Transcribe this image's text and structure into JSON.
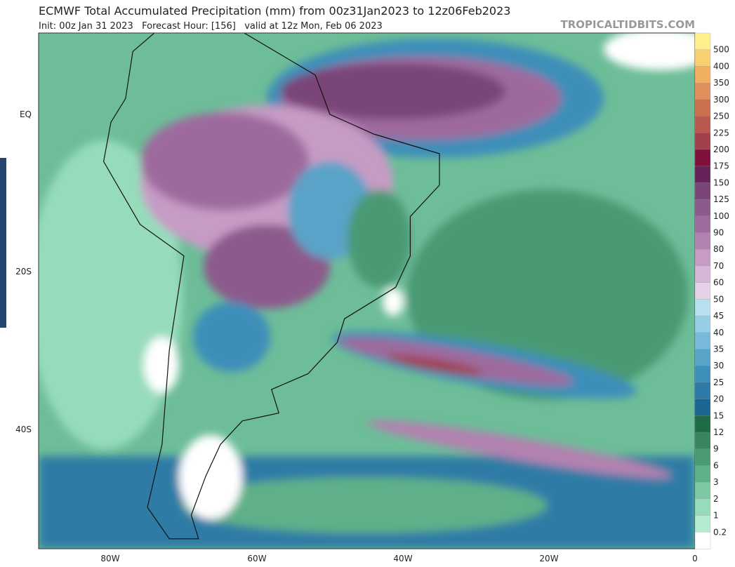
{
  "header": {
    "title": "ECMWF Total Accumulated Precipitation (mm) from 00z31Jan2023 to 12z06Feb2023",
    "subtitle": "Init: 00z Jan 31 2023   Forecast Hour: [156]   valid at 12z Mon, Feb 06 2023",
    "source": "TROPICALTIDBITS.COM"
  },
  "map": {
    "lat_labels": [
      "EQ",
      "20S",
      "40S"
    ],
    "lon_labels": [
      "80W",
      "60W",
      "40W",
      "20W",
      "0"
    ]
  },
  "colorbar": {
    "labels": [
      "500",
      "400",
      "350",
      "300",
      "250",
      "225",
      "200",
      "175",
      "150",
      "125",
      "100",
      "90",
      "80",
      "70",
      "60",
      "50",
      "45",
      "40",
      "35",
      "30",
      "25",
      "20",
      "15",
      "12",
      "9",
      "6",
      "3",
      "2",
      "1",
      "0.2"
    ],
    "colors": [
      "#fff08c",
      "#f8d070",
      "#f0b060",
      "#e0905c",
      "#c8704f",
      "#b85a50",
      "#a0404a",
      "#800f3c",
      "#65235a",
      "#7a4478",
      "#8c5a8c",
      "#9e6b9e",
      "#b282b0",
      "#c69bc4",
      "#d7b7d7",
      "#e6d2e6",
      "#b9e0f0",
      "#98cde6",
      "#78b8d8",
      "#5aa3c8",
      "#3e8fb9",
      "#2d7ba6",
      "#1a6690",
      "#1e6b45",
      "#3a855f",
      "#4a9a73",
      "#5eb089",
      "#7cc9a4",
      "#96dcbb",
      "#b4ecd2",
      "#ffffff"
    ]
  }
}
